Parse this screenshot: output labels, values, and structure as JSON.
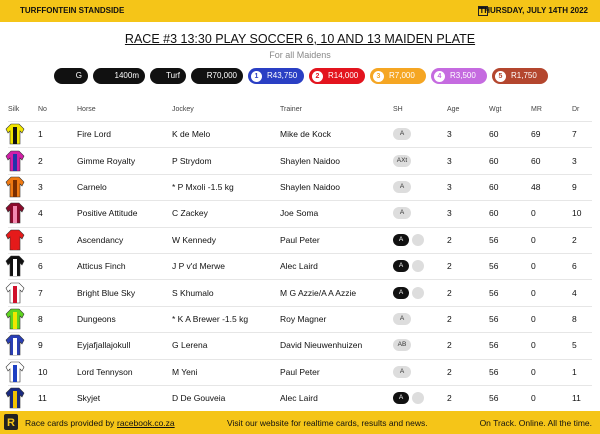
{
  "header": {
    "venue": "TURFFONTEIN STANDSIDE",
    "date": "THURSDAY, JULY 14TH 2022"
  },
  "race": {
    "title": "RACE #3 13:30 PLAY SOCCER 6, 10 AND 13 MAIDEN PLATE",
    "subtitle": "For all Maidens",
    "conditions": [
      "G",
      "1400m",
      "Turf",
      "R70,000"
    ],
    "stakes": [
      {
        "place": 1,
        "amount": "R43,750"
      },
      {
        "place": 2,
        "amount": "R14,000"
      },
      {
        "place": 3,
        "amount": "R7,000"
      },
      {
        "place": 4,
        "amount": "R3,500"
      },
      {
        "place": 5,
        "amount": "R1,750"
      }
    ]
  },
  "table": {
    "columns": [
      "Silk",
      "No",
      "Horse",
      "Jockey",
      "Trainer",
      "SH",
      "Age",
      "Wgt",
      "MR",
      "Dr"
    ],
    "rows": [
      [
        1,
        "Fire Lord",
        "K de Melo",
        "Mike de Kock",
        "A",
        3,
        60,
        69,
        7
      ],
      [
        2,
        "Gimme Royalty",
        "P Strydom",
        "Shaylen Naidoo",
        "AXt",
        3,
        60,
        60,
        3
      ],
      [
        3,
        "Carnelo",
        "* P Mxoli -1.5 kg",
        "Shaylen Naidoo",
        "A",
        3,
        60,
        48,
        9
      ],
      [
        4,
        "Positive Attitude",
        "C Zackey",
        "Joe Soma",
        "A",
        3,
        60,
        0,
        10
      ],
      [
        5,
        "Ascendancy",
        "W Kennedy",
        "Paul Peter",
        "A",
        2,
        56,
        0,
        2
      ],
      [
        6,
        "Atticus Finch",
        "J P v'd Merwe",
        "Alec Laird",
        "A",
        2,
        56,
        0,
        6
      ],
      [
        7,
        "Bright Blue Sky",
        "S Khumalo",
        "M G Azzie/A A Azzie",
        "A",
        2,
        56,
        0,
        4
      ],
      [
        8,
        "Dungeons",
        "* K A Brewer -1.5 kg",
        "Roy Magner",
        "A",
        2,
        56,
        0,
        8
      ],
      [
        9,
        "Eyjafjallajokull",
        "G Lerena",
        "David Nieuwenhuizen",
        "AB",
        2,
        56,
        0,
        5
      ],
      [
        10,
        "Lord Tennyson",
        "M Yeni",
        "Paul Peter",
        "A",
        2,
        56,
        0,
        1
      ],
      [
        11,
        "Skyjet",
        "D De Gouveia",
        "Alec Laird",
        "A",
        2,
        56,
        0,
        11
      ]
    ]
  },
  "footer": {
    "provided": "Race cards provided by",
    "link": "racebook.co.za",
    "visit": "Visit our website for realtime cards, results and news.",
    "tagline": "On Track. Online. All the time."
  }
}
